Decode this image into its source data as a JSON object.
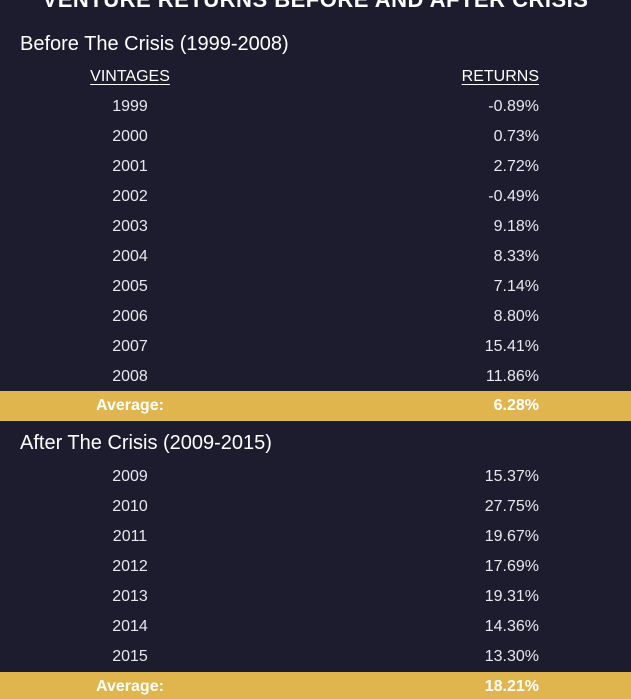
{
  "chart_data": {
    "type": "table",
    "title": "VENTURE RETURNS BEFORE AND AFTER CRISIS",
    "columns": [
      "VINTAGES",
      "RETURNS"
    ],
    "sections": [
      {
        "title": "Before The Crisis (1999-2008)",
        "rows": [
          {
            "vintage": "1999",
            "return": "-0.89%"
          },
          {
            "vintage": "2000",
            "return": "0.73%"
          },
          {
            "vintage": "2001",
            "return": "2.72%"
          },
          {
            "vintage": "2002",
            "return": "-0.49%"
          },
          {
            "vintage": "2003",
            "return": "9.18%"
          },
          {
            "vintage": "2004",
            "return": "8.33%"
          },
          {
            "vintage": "2005",
            "return": "7.14%"
          },
          {
            "vintage": "2006",
            "return": "8.80%"
          },
          {
            "vintage": "2007",
            "return": "15.41%"
          },
          {
            "vintage": "2008",
            "return": "11.86%"
          }
        ],
        "average_label": "Average:",
        "average_value": "6.28%"
      },
      {
        "title": "After The Crisis (2009-2015)",
        "rows": [
          {
            "vintage": "2009",
            "return": "15.37%"
          },
          {
            "vintage": "2010",
            "return": "27.75%"
          },
          {
            "vintage": "2011",
            "return": "19.67%"
          },
          {
            "vintage": "2012",
            "return": "17.69%"
          },
          {
            "vintage": "2013",
            "return": "19.31%"
          },
          {
            "vintage": "2014",
            "return": "14.36%"
          },
          {
            "vintage": "2015",
            "return": "13.30%"
          }
        ],
        "average_label": "Average:",
        "average_value": "18.21%"
      }
    ]
  },
  "colors": {
    "background": "#1d1c2e",
    "highlight": "#e0b54d",
    "text": "#ffffff"
  }
}
